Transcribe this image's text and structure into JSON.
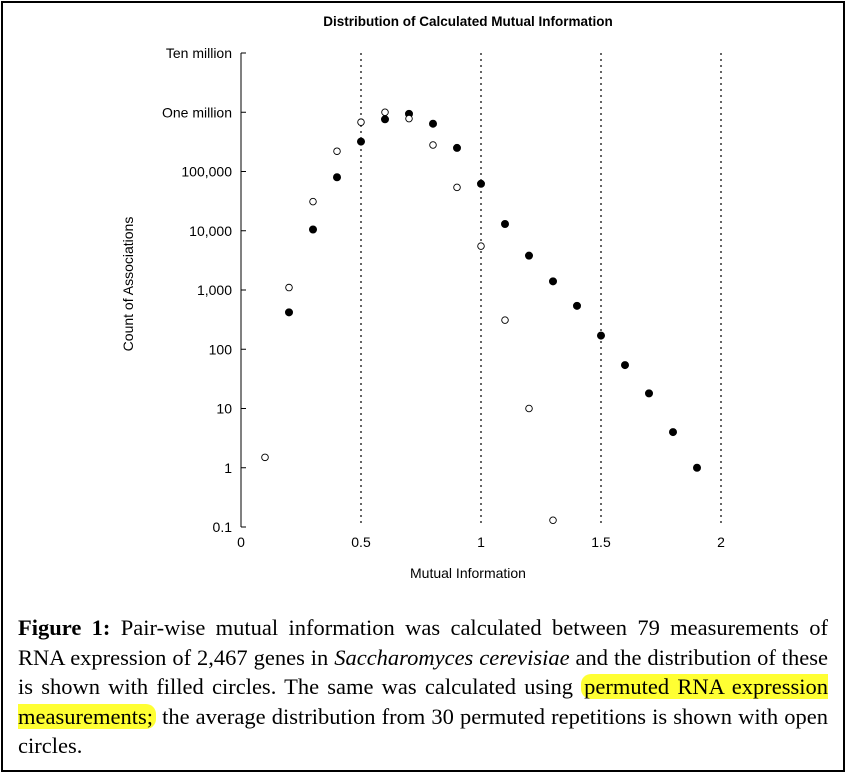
{
  "colors": {
    "highlight": "#ffff33",
    "ink": "#000000",
    "open_fill": "#ffffff"
  },
  "chart_data": {
    "type": "scatter",
    "title": "Distribution of Calculated Mutual Information",
    "xlabel": "Mutual Information",
    "ylabel": "Count of Associations",
    "xlim": [
      0,
      2
    ],
    "ylim": [
      0.1,
      10000000
    ],
    "yscale": "log",
    "x_ticks": [
      {
        "value": 0,
        "label": "0"
      },
      {
        "value": 0.5,
        "label": "0.5"
      },
      {
        "value": 1,
        "label": "1"
      },
      {
        "value": 1.5,
        "label": "1.5"
      },
      {
        "value": 2,
        "label": "2"
      }
    ],
    "y_ticks": [
      {
        "value": 10000000,
        "label": "Ten million"
      },
      {
        "value": 1000000,
        "label": "One million"
      },
      {
        "value": 100000,
        "label": "100,000"
      },
      {
        "value": 10000,
        "label": "10,000"
      },
      {
        "value": 1000,
        "label": "1,000"
      },
      {
        "value": 100,
        "label": "100"
      },
      {
        "value": 10,
        "label": "10"
      },
      {
        "value": 1,
        "label": "1"
      },
      {
        "value": 0.1,
        "label": "0.1"
      }
    ],
    "vertical_dotted_lines": [
      0.5,
      1,
      1.5,
      2
    ],
    "series": [
      {
        "marker": "filled-circle",
        "points": [
          [
            0.2,
            420
          ],
          [
            0.3,
            10500
          ],
          [
            0.4,
            80000
          ],
          [
            0.5,
            320000
          ],
          [
            0.6,
            760000
          ],
          [
            0.7,
            940000
          ],
          [
            0.8,
            640000
          ],
          [
            0.9,
            250000
          ],
          [
            1.0,
            62000
          ],
          [
            1.1,
            13000
          ],
          [
            1.2,
            3800
          ],
          [
            1.3,
            1400
          ],
          [
            1.4,
            540
          ],
          [
            1.5,
            170
          ],
          [
            1.6,
            54
          ],
          [
            1.7,
            18
          ],
          [
            1.8,
            4
          ],
          [
            1.9,
            1
          ]
        ]
      },
      {
        "marker": "open-circle",
        "points": [
          [
            0.1,
            1.5
          ],
          [
            0.2,
            1100
          ],
          [
            0.3,
            31000
          ],
          [
            0.4,
            220000
          ],
          [
            0.5,
            680000
          ],
          [
            0.6,
            1000000
          ],
          [
            0.7,
            780000
          ],
          [
            0.8,
            280000
          ],
          [
            0.9,
            54000
          ],
          [
            1.0,
            5500
          ],
          [
            1.1,
            310
          ],
          [
            1.2,
            10
          ],
          [
            1.3,
            0.13
          ]
        ]
      }
    ]
  },
  "caption": {
    "label": "Figure 1:",
    "part1": " Pair-wise mutual information was calculated between 79 measurements of RNA expression of 2,467 genes in ",
    "species": "Saccharomyces cerevisiae",
    "part2": " and the distribution of these is shown with filled circles. The same was calculated using ",
    "highlighted": "permuted RNA expression measurements;",
    "part3": " the average distribution from 30 permuted repetitions is shown with open circles."
  }
}
